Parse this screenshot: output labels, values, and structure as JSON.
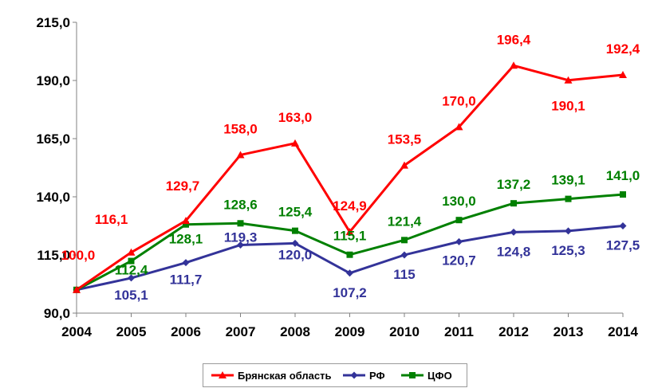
{
  "chart_data": {
    "type": "line",
    "title": "",
    "xlabel": "",
    "ylabel": "",
    "categories": [
      "2004",
      "2005",
      "2006",
      "2007",
      "2008",
      "2009",
      "2010",
      "2011",
      "2012",
      "2013",
      "2014"
    ],
    "ylim": [
      90,
      215
    ],
    "yticks": [
      90,
      115,
      140,
      165,
      190,
      215
    ],
    "ytick_labels": [
      "90,0",
      "115,0",
      "140,0",
      "165,0",
      "190,0",
      "215,0"
    ],
    "grid": false,
    "legend_position": "bottom",
    "series": [
      {
        "name": "Брянская область",
        "color": "#ff0000",
        "marker": "triangle",
        "values": [
          100.0,
          116.1,
          129.7,
          158.0,
          163.0,
          124.9,
          153.5,
          170.0,
          196.4,
          190.1,
          192.4
        ],
        "labels": [
          "100,0",
          "116,1",
          "129,7",
          "158,0",
          "163,0",
          "124,9",
          "153,5",
          "170,0",
          "196,4",
          "190,1",
          "192,4"
        ]
      },
      {
        "name": "РФ",
        "color": "#333399",
        "marker": "diamond",
        "values": [
          100.0,
          105.1,
          111.7,
          119.3,
          120.0,
          107.2,
          115.0,
          120.7,
          124.8,
          125.3,
          127.5
        ],
        "labels": [
          "",
          "105,1",
          "111,7",
          "119,3",
          "120,0",
          "107,2",
          "115",
          "120,7",
          "124,8",
          "125,3",
          "127,5"
        ]
      },
      {
        "name": "ЦФО",
        "color": "#008000",
        "marker": "square",
        "values": [
          100.0,
          112.4,
          128.1,
          128.6,
          125.4,
          115.1,
          121.4,
          130.0,
          137.2,
          139.1,
          141.0
        ],
        "labels": [
          "",
          "112,4",
          "128,1",
          "128,6",
          "125,4",
          "115,1",
          "121,4",
          "130,0",
          "137,2",
          "139,1",
          "141,0"
        ]
      }
    ]
  }
}
